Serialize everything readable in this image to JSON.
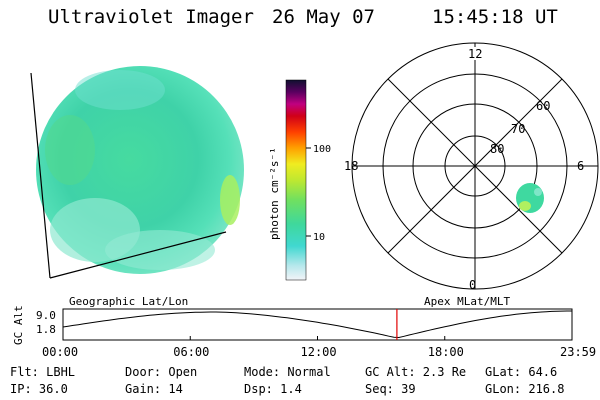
{
  "header": {
    "title": "Ultraviolet Imager",
    "date": "26 May 07",
    "time": "15:45:18 UT"
  },
  "colorbar": {
    "unit_label": "photon cm⁻²s⁻¹",
    "ticks": [
      "100",
      "10"
    ]
  },
  "polar": {
    "mlt_labels": {
      "top": "12",
      "left": "18",
      "right": "6",
      "bottom": "0"
    },
    "lat_labels": [
      "60",
      "70",
      "80"
    ]
  },
  "timeline": {
    "left_title": "Geographic Lat/Lon",
    "right_title": "Apex MLat/MLT",
    "axis_label": "GC Alt",
    "y_ticks": [
      "9.0",
      "1.8"
    ],
    "x_ticks": [
      "00:00",
      "06:00",
      "12:00",
      "18:00",
      "23:59"
    ],
    "current_time_fraction": 0.656
  },
  "info": {
    "row1": [
      {
        "label": "Flt:",
        "value": "LBHL"
      },
      {
        "label": "Door:",
        "value": "Open"
      },
      {
        "label": "Mode:",
        "value": "Normal"
      },
      {
        "label": "GC Alt:",
        "value": "2.3 Re"
      },
      {
        "label": "GLat:",
        "value": "64.6"
      }
    ],
    "row2": [
      {
        "label": "IP:",
        "value": "36.0"
      },
      {
        "label": "Gain:",
        "value": "14"
      },
      {
        "label": "Dsp:",
        "value": "1.4"
      },
      {
        "label": "Seq:",
        "value": "39"
      },
      {
        "label": "GLon:",
        "value": "216.8"
      }
    ]
  },
  "colors": {
    "image_fill": "#3cd9a0",
    "marker": "#e00000"
  }
}
